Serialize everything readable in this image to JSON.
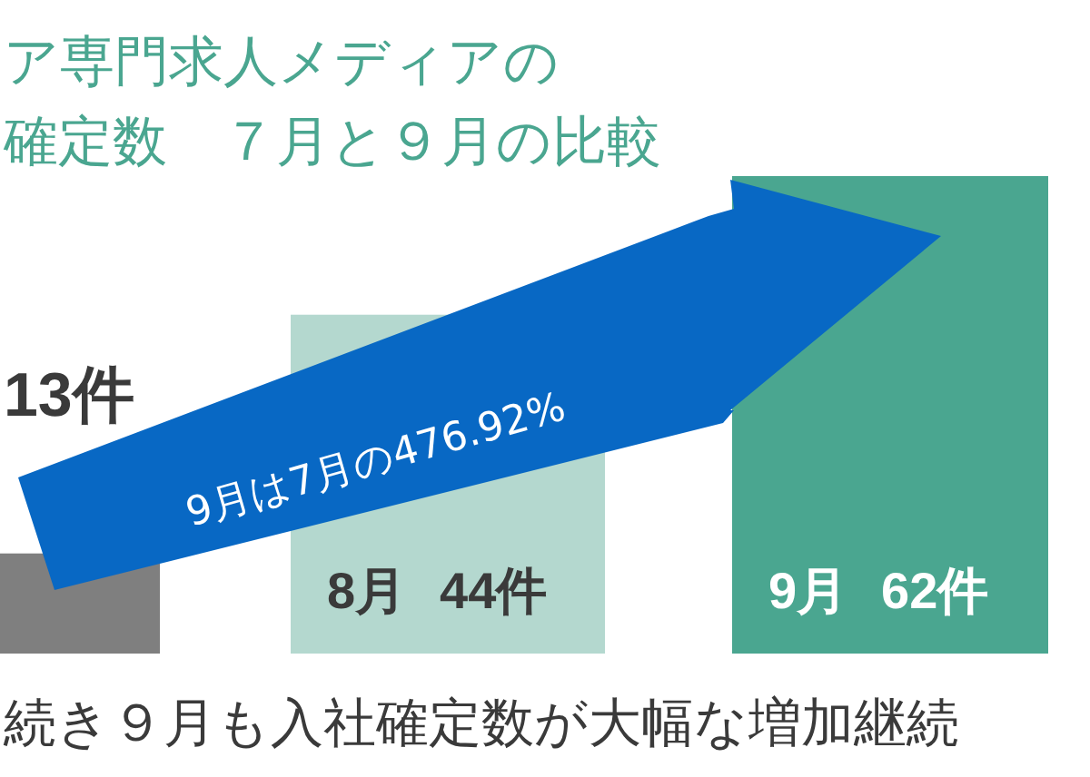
{
  "chart_data": {
    "type": "bar",
    "title": "ア専門求人メディアの",
    "subtitle": "確定数　７月と９月の比較",
    "categories": [
      null,
      "8月",
      "9月"
    ],
    "values": [
      13,
      44,
      62
    ],
    "colors": [
      "#7f7f7f",
      "#b4d8cf",
      "#4aa690"
    ],
    "value_labels": [
      "13件",
      "44件",
      "62件"
    ],
    "annotations": [
      "9月は7月の476.92%",
      "続き９月も入社確定数が大幅な増加継続"
    ]
  }
}
